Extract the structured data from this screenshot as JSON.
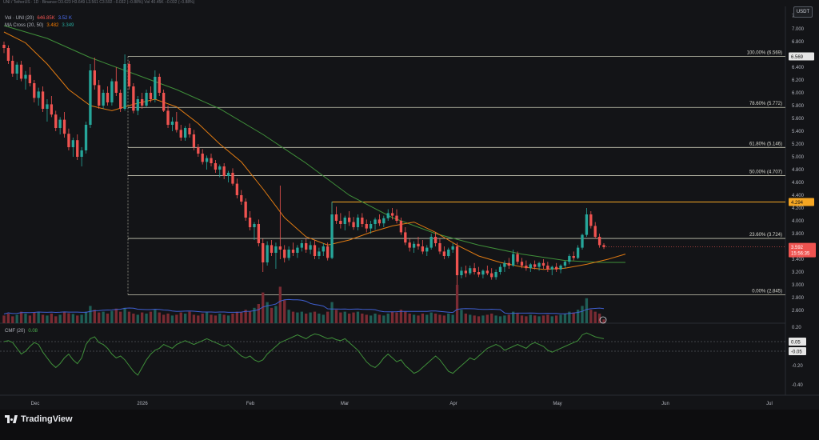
{
  "header": {
    "symbol_line": {
      "name": "UNI / TetherUS · 1D · Binance",
      "values": "O3.623 H3.649 L3.561 C3.592 −0.032 (−0.88%)",
      "vol": "Vol 40.45K −0.032 (−0.88%)"
    },
    "vol_line": {
      "name": "Vol · UNI (20)",
      "v1": "646.85K",
      "v2": "3.52 K"
    },
    "ma_line": {
      "name": "MA Cross (20, 50)",
      "v1": "3.482",
      "v2": "3.349"
    },
    "currency_button": "USDT"
  },
  "price_axis": {
    "ticks": [
      "7.200",
      "7.000",
      "6.800",
      "6.600",
      "6.400",
      "6.200",
      "6.000",
      "5.800",
      "5.600",
      "5.400",
      "5.200",
      "5.000",
      "4.800",
      "4.600",
      "4.400",
      "4.200",
      "4.000",
      "3.800",
      "3.600",
      "3.400",
      "3.200",
      "3.000",
      "2.800",
      "2.600"
    ],
    "last_price_label": "3.592",
    "countdown_label": "15:56:35",
    "fib_high_label": "6.569",
    "resistance_label": "4.294"
  },
  "cmf_axis": {
    "ticks": [
      "0.20",
      "0.05",
      "-0.05",
      "-0.20",
      "-0.40"
    ],
    "plus_label": "0.05",
    "minus_label": "-0.05"
  },
  "cmf_legend": {
    "name": "CMF (20)",
    "value": "0.08"
  },
  "time_axis": {
    "labels": [
      "Dec",
      "2026",
      "Feb",
      "Mar",
      "Apr",
      "May",
      "Jun",
      "Jul"
    ]
  },
  "fib_levels": [
    {
      "label": "100.00% (6.569)",
      "price": 6.569
    },
    {
      "label": "78.60% (5.772)",
      "price": 5.772
    },
    {
      "label": "61.80% (5.146)",
      "price": 5.146
    },
    {
      "label": "50.00% (4.707)",
      "price": 4.707
    },
    {
      "label": "23.60% (3.724)",
      "price": 3.724
    },
    {
      "label": "0.00% (2.845)",
      "price": 2.845
    }
  ],
  "branding": {
    "name": "TradingView"
  },
  "chart_data": {
    "type": "candlestick",
    "symbol": "UNI/USDT",
    "interval": "1D",
    "ylim": [
      2.5,
      7.3
    ],
    "resistance": 4.294,
    "candles": [
      [
        6.75,
        6.8,
        6.62,
        6.7
      ],
      [
        6.7,
        6.74,
        6.45,
        6.5
      ],
      [
        6.5,
        6.58,
        6.25,
        6.3
      ],
      [
        6.3,
        6.48,
        6.2,
        6.44
      ],
      [
        6.44,
        6.5,
        6.18,
        6.22
      ],
      [
        6.22,
        6.34,
        6.05,
        6.28
      ],
      [
        6.28,
        6.4,
        6.1,
        6.15
      ],
      [
        6.15,
        6.2,
        5.85,
        5.92
      ],
      [
        5.92,
        6.08,
        5.8,
        6.02
      ],
      [
        6.02,
        6.1,
        5.7,
        5.75
      ],
      [
        5.75,
        5.9,
        5.55,
        5.82
      ],
      [
        5.82,
        5.95,
        5.62,
        5.66
      ],
      [
        5.66,
        5.72,
        5.4,
        5.45
      ],
      [
        5.45,
        5.62,
        5.35,
        5.58
      ],
      [
        5.58,
        5.7,
        5.3,
        5.36
      ],
      [
        5.36,
        5.44,
        5.1,
        5.15
      ],
      [
        5.15,
        5.3,
        5.0,
        5.26
      ],
      [
        5.26,
        5.35,
        4.95,
        5.0
      ],
      [
        5.0,
        5.15,
        4.85,
        5.1
      ],
      [
        5.1,
        5.55,
        5.05,
        5.5
      ],
      [
        5.5,
        6.45,
        5.45,
        6.35
      ],
      [
        6.35,
        6.55,
        6.05,
        6.12
      ],
      [
        6.12,
        6.2,
        5.75,
        5.8
      ],
      [
        5.8,
        6.05,
        5.75,
        6.0
      ],
      [
        6.0,
        6.1,
        5.8,
        5.85
      ],
      [
        5.85,
        6.22,
        5.8,
        6.18
      ],
      [
        6.18,
        6.4,
        5.95,
        6.0
      ],
      [
        6.0,
        6.05,
        5.7,
        5.75
      ],
      [
        5.75,
        6.6,
        5.72,
        6.45
      ],
      [
        6.45,
        6.5,
        6.05,
        6.1
      ],
      [
        6.1,
        6.15,
        5.68,
        5.72
      ],
      [
        5.72,
        5.95,
        5.65,
        5.9
      ],
      [
        5.9,
        6.0,
        5.75,
        5.8
      ],
      [
        5.8,
        6.05,
        5.78,
        6.0
      ],
      [
        6.0,
        6.1,
        5.85,
        5.9
      ],
      [
        5.9,
        6.35,
        5.85,
        6.25
      ],
      [
        6.25,
        6.3,
        5.95,
        6.0
      ],
      [
        6.0,
        6.05,
        5.7,
        5.72
      ],
      [
        5.72,
        5.8,
        5.45,
        5.5
      ],
      [
        5.5,
        5.62,
        5.4,
        5.55
      ],
      [
        5.55,
        5.7,
        5.38,
        5.42
      ],
      [
        5.42,
        5.5,
        5.25,
        5.3
      ],
      [
        5.3,
        5.48,
        5.25,
        5.45
      ],
      [
        5.45,
        5.52,
        5.3,
        5.35
      ],
      [
        5.35,
        5.42,
        5.1,
        5.15
      ],
      [
        5.15,
        5.2,
        5.0,
        5.05
      ],
      [
        5.05,
        5.12,
        4.88,
        4.92
      ],
      [
        4.92,
        5.02,
        4.8,
        4.98
      ],
      [
        4.98,
        5.05,
        4.85,
        4.9
      ],
      [
        4.9,
        4.95,
        4.75,
        4.8
      ],
      [
        4.8,
        4.88,
        4.68,
        4.85
      ],
      [
        4.85,
        4.9,
        4.65,
        4.7
      ],
      [
        4.7,
        4.78,
        4.6,
        4.75
      ],
      [
        4.75,
        4.82,
        4.55,
        4.58
      ],
      [
        4.58,
        4.66,
        4.35,
        4.4
      ],
      [
        4.4,
        4.48,
        4.25,
        4.3
      ],
      [
        4.3,
        4.35,
        4.0,
        4.05
      ],
      [
        4.05,
        4.15,
        3.85,
        3.9
      ],
      [
        3.9,
        3.98,
        3.7,
        3.95
      ],
      [
        3.95,
        4.02,
        3.6,
        3.65
      ],
      [
        3.65,
        3.72,
        3.2,
        3.35
      ],
      [
        3.35,
        3.68,
        3.3,
        3.62
      ],
      [
        3.62,
        3.7,
        3.45,
        3.5
      ],
      [
        3.5,
        3.66,
        3.25,
        3.6
      ],
      [
        3.6,
        4.55,
        3.4,
        3.55
      ],
      [
        3.55,
        3.62,
        3.35,
        3.42
      ],
      [
        3.42,
        3.6,
        3.38,
        3.55
      ],
      [
        3.55,
        3.66,
        3.45,
        3.5
      ],
      [
        3.5,
        3.62,
        3.42,
        3.58
      ],
      [
        3.58,
        3.7,
        3.52,
        3.65
      ],
      [
        3.65,
        3.72,
        3.5,
        3.55
      ],
      [
        3.55,
        3.68,
        3.48,
        3.62
      ],
      [
        3.62,
        3.7,
        3.4,
        3.45
      ],
      [
        3.45,
        3.58,
        3.4,
        3.52
      ],
      [
        3.52,
        3.65,
        3.45,
        3.6
      ],
      [
        3.6,
        3.66,
        3.38,
        3.42
      ],
      [
        3.42,
        4.3,
        3.4,
        4.1
      ],
      [
        4.1,
        4.22,
        3.95,
        4.0
      ],
      [
        4.0,
        4.12,
        3.88,
        3.95
      ],
      [
        3.95,
        4.08,
        3.85,
        4.05
      ],
      [
        4.05,
        4.15,
        3.92,
        3.98
      ],
      [
        3.98,
        4.06,
        3.86,
        3.9
      ],
      [
        3.9,
        4.1,
        3.85,
        4.05
      ],
      [
        4.05,
        4.12,
        3.9,
        3.95
      ],
      [
        3.95,
        4.02,
        3.82,
        3.88
      ],
      [
        3.88,
        4.0,
        3.8,
        3.95
      ],
      [
        3.95,
        4.05,
        3.86,
        4.02
      ],
      [
        4.02,
        4.1,
        3.92,
        3.96
      ],
      [
        3.96,
        4.08,
        3.9,
        4.04
      ],
      [
        4.04,
        4.18,
        4.0,
        4.12
      ],
      [
        4.12,
        4.2,
        4.02,
        4.08
      ],
      [
        4.08,
        4.18,
        3.96,
        4.0
      ],
      [
        4.0,
        4.05,
        3.78,
        3.82
      ],
      [
        3.82,
        3.9,
        3.62,
        3.66
      ],
      [
        3.66,
        3.72,
        3.52,
        3.58
      ],
      [
        3.58,
        3.68,
        3.5,
        3.64
      ],
      [
        3.64,
        3.75,
        3.55,
        3.6
      ],
      [
        3.6,
        3.7,
        3.48,
        3.52
      ],
      [
        3.52,
        3.62,
        3.45,
        3.58
      ],
      [
        3.58,
        3.8,
        3.55,
        3.75
      ],
      [
        3.75,
        3.82,
        3.6,
        3.65
      ],
      [
        3.65,
        3.72,
        3.48,
        3.52
      ],
      [
        3.52,
        3.6,
        3.4,
        3.45
      ],
      [
        3.45,
        3.58,
        3.42,
        3.55
      ],
      [
        3.55,
        3.65,
        3.5,
        3.6
      ],
      [
        3.6,
        3.66,
        3.0,
        3.15
      ],
      [
        3.15,
        3.28,
        3.1,
        3.22
      ],
      [
        3.22,
        3.3,
        3.12,
        3.18
      ],
      [
        3.18,
        3.3,
        3.15,
        3.26
      ],
      [
        3.26,
        3.34,
        3.16,
        3.2
      ],
      [
        3.2,
        3.28,
        3.12,
        3.16
      ],
      [
        3.16,
        3.24,
        3.1,
        3.22
      ],
      [
        3.22,
        3.3,
        3.15,
        3.18
      ],
      [
        3.18,
        3.26,
        3.08,
        3.12
      ],
      [
        3.12,
        3.24,
        3.08,
        3.2
      ],
      [
        3.2,
        3.32,
        3.16,
        3.28
      ],
      [
        3.28,
        3.38,
        3.2,
        3.34
      ],
      [
        3.34,
        3.42,
        3.25,
        3.3
      ],
      [
        3.3,
        3.55,
        3.28,
        3.48
      ],
      [
        3.48,
        3.52,
        3.32,
        3.36
      ],
      [
        3.36,
        3.42,
        3.26,
        3.3
      ],
      [
        3.3,
        3.38,
        3.22,
        3.26
      ],
      [
        3.26,
        3.34,
        3.2,
        3.32
      ],
      [
        3.32,
        3.38,
        3.24,
        3.28
      ],
      [
        3.28,
        3.36,
        3.22,
        3.34
      ],
      [
        3.34,
        3.4,
        3.25,
        3.3
      ],
      [
        3.3,
        3.36,
        3.2,
        3.24
      ],
      [
        3.24,
        3.3,
        3.15,
        3.28
      ],
      [
        3.28,
        3.34,
        3.2,
        3.24
      ],
      [
        3.24,
        3.32,
        3.18,
        3.3
      ],
      [
        3.3,
        3.38,
        3.26,
        3.36
      ],
      [
        3.36,
        3.48,
        3.32,
        3.45
      ],
      [
        3.45,
        3.52,
        3.38,
        3.42
      ],
      [
        3.42,
        3.62,
        3.4,
        3.58
      ],
      [
        3.58,
        3.8,
        3.55,
        3.78
      ],
      [
        3.78,
        4.2,
        3.75,
        4.1
      ],
      [
        4.1,
        4.15,
        3.88,
        3.92
      ],
      [
        3.92,
        3.98,
        3.72,
        3.75
      ],
      [
        3.75,
        3.8,
        3.58,
        3.62
      ],
      [
        3.62,
        3.65,
        3.56,
        3.59
      ]
    ],
    "ma20": [
      [
        0,
        6.95
      ],
      [
        5,
        6.78
      ],
      [
        10,
        6.45
      ],
      [
        15,
        6.05
      ],
      [
        20,
        5.8
      ],
      [
        25,
        5.72
      ],
      [
        30,
        5.82
      ],
      [
        35,
        5.9
      ],
      [
        40,
        5.78
      ],
      [
        45,
        5.52
      ],
      [
        50,
        5.2
      ],
      [
        55,
        4.92
      ],
      [
        60,
        4.5
      ],
      [
        65,
        4.05
      ],
      [
        70,
        3.75
      ],
      [
        75,
        3.62
      ],
      [
        80,
        3.7
      ],
      [
        85,
        3.82
      ],
      [
        90,
        3.92
      ],
      [
        95,
        3.98
      ],
      [
        100,
        3.82
      ],
      [
        105,
        3.62
      ],
      [
        110,
        3.45
      ],
      [
        115,
        3.35
      ],
      [
        120,
        3.28
      ],
      [
        125,
        3.24
      ],
      [
        130,
        3.26
      ],
      [
        135,
        3.32
      ],
      [
        140,
        3.4
      ],
      [
        144,
        3.48
      ]
    ],
    "ma50": [
      [
        0,
        7.05
      ],
      [
        10,
        6.85
      ],
      [
        20,
        6.55
      ],
      [
        30,
        6.3
      ],
      [
        40,
        6.05
      ],
      [
        50,
        5.75
      ],
      [
        60,
        5.35
      ],
      [
        70,
        4.9
      ],
      [
        80,
        4.4
      ],
      [
        90,
        4.05
      ],
      [
        100,
        3.8
      ],
      [
        110,
        3.62
      ],
      [
        120,
        3.48
      ],
      [
        130,
        3.38
      ],
      [
        138,
        3.35
      ],
      [
        144,
        3.35
      ]
    ],
    "volume_ratio": [
      0.2,
      0.25,
      0.18,
      0.22,
      0.3,
      0.25,
      0.2,
      0.28,
      0.3,
      0.22,
      0.2,
      0.25,
      0.18,
      0.22,
      0.3,
      0.26,
      0.24,
      0.2,
      0.22,
      0.3,
      0.45,
      0.35,
      0.28,
      0.3,
      0.25,
      0.32,
      0.38,
      0.3,
      0.4,
      0.3,
      0.25,
      0.22,
      0.28,
      0.25,
      0.3,
      0.35,
      0.28,
      0.22,
      0.25,
      0.2,
      0.22,
      0.28,
      0.25,
      0.3,
      0.22,
      0.2,
      0.25,
      0.28,
      0.22,
      0.2,
      0.25,
      0.22,
      0.2,
      0.25,
      0.3,
      0.28,
      0.35,
      0.3,
      0.4,
      0.5,
      0.8,
      0.55,
      0.4,
      0.45,
      0.95,
      0.6,
      0.35,
      0.3,
      0.28,
      0.3,
      0.25,
      0.28,
      0.3,
      0.25,
      0.22,
      0.3,
      0.55,
      0.35,
      0.28,
      0.3,
      0.25,
      0.28,
      0.3,
      0.25,
      0.22,
      0.2,
      0.25,
      0.22,
      0.2,
      0.25,
      0.3,
      0.28,
      0.35,
      0.3,
      0.25,
      0.22,
      0.2,
      0.25,
      0.22,
      0.28,
      0.25,
      0.22,
      0.2,
      0.25,
      0.22,
      1.0,
      0.35,
      0.25,
      0.22,
      0.2,
      0.18,
      0.2,
      0.22,
      0.25,
      0.2,
      0.18,
      0.2,
      0.22,
      0.3,
      0.25,
      0.2,
      0.18,
      0.22,
      0.2,
      0.18,
      0.2,
      0.22,
      0.18,
      0.2,
      0.22,
      0.25,
      0.3,
      0.28,
      0.35,
      0.45,
      0.65,
      0.35,
      0.3,
      0.25,
      0.1
    ],
    "cmf": [
      0.05,
      0.06,
      0.04,
      -0.02,
      -0.08,
      -0.05,
      0.0,
      0.04,
      0.02,
      -0.06,
      -0.12,
      -0.18,
      -0.22,
      -0.18,
      -0.12,
      -0.08,
      -0.14,
      -0.18,
      -0.12,
      0.02,
      0.08,
      0.1,
      0.04,
      0.02,
      -0.02,
      -0.08,
      -0.12,
      -0.1,
      -0.14,
      -0.2,
      -0.26,
      -0.3,
      -0.22,
      -0.14,
      -0.08,
      -0.04,
      -0.02,
      0.02,
      0.0,
      -0.02,
      0.02,
      0.04,
      0.06,
      0.04,
      0.02,
      0.04,
      0.06,
      0.08,
      0.06,
      0.04,
      0.02,
      0.0,
      0.02,
      -0.02,
      -0.06,
      -0.1,
      -0.12,
      -0.1,
      -0.14,
      -0.16,
      -0.14,
      -0.08,
      -0.04,
      0.0,
      0.04,
      0.06,
      0.08,
      0.1,
      0.12,
      0.1,
      0.08,
      0.11,
      0.13,
      0.12,
      0.1,
      0.08,
      0.09,
      0.07,
      0.06,
      0.08,
      0.04,
      0.0,
      -0.04,
      -0.1,
      -0.16,
      -0.2,
      -0.22,
      -0.18,
      -0.12,
      -0.08,
      -0.12,
      -0.16,
      -0.14,
      -0.2,
      -0.24,
      -0.28,
      -0.26,
      -0.22,
      -0.18,
      -0.14,
      -0.1,
      -0.14,
      -0.2,
      -0.26,
      -0.28,
      -0.24,
      -0.2,
      -0.16,
      -0.12,
      -0.14,
      -0.1,
      -0.06,
      -0.02,
      0.0,
      0.02,
      0.0,
      -0.04,
      -0.02,
      0.0,
      0.02,
      0.0,
      -0.02,
      0.02,
      0.04,
      0.02,
      0.0,
      -0.04,
      -0.06,
      -0.04,
      -0.02,
      0.0,
      0.02,
      0.04,
      0.06,
      0.12,
      0.14,
      0.12,
      0.1,
      0.09,
      0.08
    ]
  }
}
